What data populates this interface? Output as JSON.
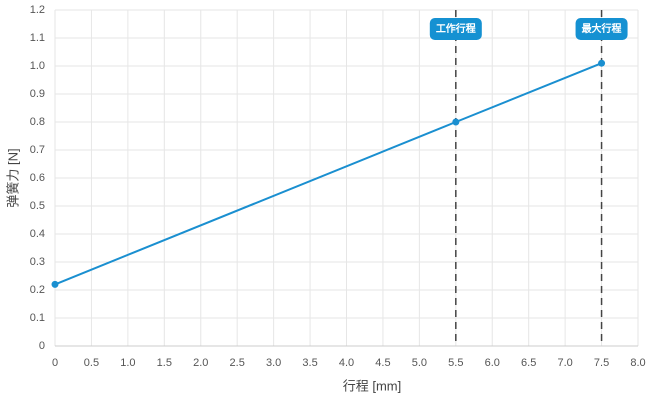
{
  "chart_data": {
    "type": "line",
    "x_label": "行程 [mm]",
    "y_label": "弹簧力 [N]",
    "x": [
      0,
      5.5,
      7.5
    ],
    "series": [
      {
        "name": "弹簧力",
        "color": "#1a8fd0",
        "values": [
          0.22,
          0.8,
          1.01
        ]
      }
    ],
    "xlim": [
      0,
      8
    ],
    "ylim": [
      0,
      1.2
    ],
    "xticks": [
      0,
      0.5,
      {
        "value": 1,
        "label": "1.0"
      },
      1.5,
      {
        "value": 2,
        "label": "2.0"
      },
      2.5,
      {
        "value": 3,
        "label": "3.0"
      },
      3.5,
      {
        "value": 4,
        "label": "4.0"
      },
      4.5,
      {
        "value": 5,
        "label": "5.0"
      },
      5.5,
      {
        "value": 6,
        "label": "6.0"
      },
      6.5,
      {
        "value": 7,
        "label": "7.0"
      },
      7.5,
      {
        "value": 8,
        "label": "8.0"
      }
    ],
    "yticks": [
      0,
      0.1,
      0.2,
      0.3,
      0.4,
      0.5,
      0.6,
      0.7,
      0.8,
      0.9,
      {
        "value": 1,
        "label": "1.0"
      },
      1.1,
      1.2
    ],
    "grid": true,
    "annotations": [
      {
        "x": 5.5,
        "label": "工作行程",
        "color": "#1591d2"
      },
      {
        "x": 7.5,
        "label": "最大行程",
        "color": "#1591d2"
      }
    ]
  }
}
